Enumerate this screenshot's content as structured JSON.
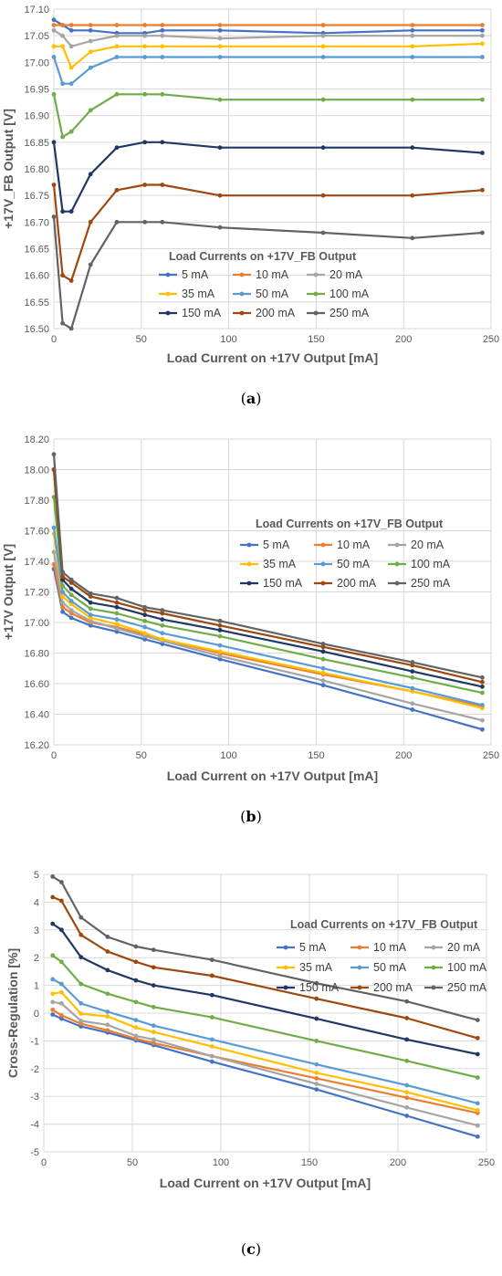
{
  "colors": {
    "5 mA": "#4472C4",
    "10 mA": "#ED7D31",
    "20 mA": "#A5A5A5",
    "35 mA": "#FFC000",
    "50 mA": "#5B9BD5",
    "100 mA": "#70AD47",
    "150 mA": "#1F3864",
    "200 mA": "#9E480E",
    "250 mA": "#636363"
  },
  "chart_data": [
    {
      "id": "a",
      "caption": "a",
      "type": "line",
      "xlabel": "Load Current on +17V Output [mA]",
      "ylabel": "+17V_FB Output [V]",
      "xlim": [
        0,
        250
      ],
      "ylim": [
        16.5,
        17.1
      ],
      "xticks": [
        "0",
        "50",
        "100",
        "150",
        "200",
        "250"
      ],
      "yticks": [
        "16.50",
        "16.55",
        "16.60",
        "16.65",
        "16.70",
        "16.75",
        "16.80",
        "16.85",
        "16.90",
        "16.95",
        "17.00",
        "17.05",
        "17.10"
      ],
      "legend_title": "Load Currents on +17V_FB Output",
      "grid": true,
      "x": [
        0,
        5,
        10,
        21,
        36,
        52,
        62,
        95,
        154,
        205,
        245
      ],
      "series": [
        {
          "name": "5 mA",
          "values": [
            17.08,
            17.07,
            17.06,
            17.06,
            17.055,
            17.055,
            17.06,
            17.06,
            17.055,
            17.06,
            17.06
          ]
        },
        {
          "name": "10 mA",
          "values": [
            17.07,
            17.07,
            17.07,
            17.07,
            17.07,
            17.07,
            17.07,
            17.07,
            17.07,
            17.07,
            17.07
          ]
        },
        {
          "name": "20 mA",
          "values": [
            17.06,
            17.05,
            17.03,
            17.04,
            17.05,
            17.05,
            17.05,
            17.045,
            17.05,
            17.05,
            17.05
          ]
        },
        {
          "name": "35 mA",
          "values": [
            17.03,
            17.03,
            16.99,
            17.02,
            17.03,
            17.03,
            17.03,
            17.03,
            17.03,
            17.03,
            17.035
          ]
        },
        {
          "name": "50 mA",
          "values": [
            17.01,
            16.96,
            16.96,
            16.99,
            17.01,
            17.01,
            17.01,
            17.01,
            17.01,
            17.01,
            17.01
          ]
        },
        {
          "name": "100 mA",
          "values": [
            16.94,
            16.86,
            16.87,
            16.91,
            16.94,
            16.94,
            16.94,
            16.93,
            16.93,
            16.93,
            16.93
          ]
        },
        {
          "name": "150 mA",
          "values": [
            16.85,
            16.72,
            16.72,
            16.79,
            16.84,
            16.85,
            16.85,
            16.84,
            16.84,
            16.84,
            16.83
          ]
        },
        {
          "name": "200 mA",
          "values": [
            16.77,
            16.6,
            16.59,
            16.7,
            16.76,
            16.77,
            16.77,
            16.75,
            16.75,
            16.75,
            16.76
          ]
        },
        {
          "name": "250 mA",
          "values": [
            16.71,
            16.51,
            16.5,
            16.62,
            16.7,
            16.7,
            16.7,
            16.69,
            16.68,
            16.67,
            16.68
          ]
        }
      ]
    },
    {
      "id": "b",
      "caption": "b",
      "type": "line",
      "xlabel": "Load Current on +17V Output [mA]",
      "ylabel": "+17V Output [V]",
      "xlim": [
        0,
        250
      ],
      "ylim": [
        16.2,
        18.2
      ],
      "xticks": [
        "0",
        "50",
        "100",
        "150",
        "200",
        "250"
      ],
      "yticks": [
        "16.20",
        "16.40",
        "16.60",
        "16.80",
        "17.00",
        "17.20",
        "17.40",
        "17.60",
        "17.80",
        "18.00",
        "18.20"
      ],
      "legend_title": "Load Currents on +17V_FB Output",
      "grid": true,
      "x": [
        0,
        5,
        10,
        21,
        36,
        52,
        62,
        95,
        154,
        205,
        245
      ],
      "series": [
        {
          "name": "5 mA",
          "values": [
            17.35,
            17.07,
            17.03,
            16.98,
            16.94,
            16.89,
            16.86,
            16.76,
            16.59,
            16.43,
            16.3
          ]
        },
        {
          "name": "10 mA",
          "values": [
            17.38,
            17.1,
            17.06,
            17.0,
            16.97,
            16.92,
            16.89,
            16.8,
            16.66,
            16.55,
            16.45
          ]
        },
        {
          "name": "20 mA",
          "values": [
            17.46,
            17.13,
            17.08,
            17.01,
            16.96,
            16.91,
            16.88,
            16.78,
            16.62,
            16.47,
            16.36
          ]
        },
        {
          "name": "35 mA",
          "values": [
            17.58,
            17.17,
            17.12,
            17.03,
            16.99,
            16.93,
            16.89,
            16.81,
            16.67,
            16.55,
            16.44
          ]
        },
        {
          "name": "50 mA",
          "values": [
            17.62,
            17.2,
            17.14,
            17.05,
            17.02,
            16.97,
            16.93,
            16.85,
            16.7,
            16.57,
            16.46
          ]
        },
        {
          "name": "100 mA",
          "values": [
            17.82,
            17.24,
            17.18,
            17.09,
            17.06,
            17.01,
            16.98,
            16.91,
            16.76,
            16.64,
            16.54
          ]
        },
        {
          "name": "150 mA",
          "values": [
            18.0,
            17.28,
            17.22,
            17.13,
            17.1,
            17.05,
            17.02,
            16.95,
            16.81,
            16.68,
            16.58
          ]
        },
        {
          "name": "200 mA",
          "values": [
            18.0,
            17.3,
            17.26,
            17.17,
            17.13,
            17.08,
            17.06,
            16.98,
            16.84,
            16.72,
            16.61
          ]
        },
        {
          "name": "250 mA",
          "values": [
            18.1,
            17.33,
            17.28,
            17.19,
            17.16,
            17.1,
            17.08,
            17.01,
            16.86,
            16.74,
            16.64
          ]
        }
      ]
    },
    {
      "id": "c",
      "caption": "c",
      "type": "line",
      "xlabel": "Load Current on +17V Output [mA]",
      "ylabel": "Cross-Regulation [%]",
      "xlim": [
        0,
        250
      ],
      "ylim": [
        -5,
        5
      ],
      "xticks": [
        "0",
        "50",
        "100",
        "150",
        "200",
        "250"
      ],
      "yticks": [
        "-5",
        "-4",
        "-3",
        "-2",
        "-1",
        "0",
        "1",
        "2",
        "3",
        "4",
        "5"
      ],
      "legend_title": "Load Currents on +17V_FB Output",
      "grid": true,
      "x": [
        5,
        10,
        21,
        36,
        52,
        62,
        95,
        154,
        205,
        245
      ],
      "series": [
        {
          "name": "5 mA",
          "values": [
            -0.05,
            -0.2,
            -0.48,
            -0.7,
            -0.98,
            -1.15,
            -1.75,
            -2.75,
            -3.7,
            -4.45
          ]
        },
        {
          "name": "10 mA",
          "values": [
            0.12,
            -0.08,
            -0.38,
            -0.62,
            -0.92,
            -1.08,
            -1.55,
            -2.35,
            -3.05,
            -3.6
          ]
        },
        {
          "name": "20 mA",
          "values": [
            0.4,
            0.35,
            -0.28,
            -0.42,
            -0.82,
            -0.95,
            -1.55,
            -2.55,
            -3.4,
            -4.05
          ]
        },
        {
          "name": "35 mA",
          "values": [
            0.7,
            0.75,
            -0.02,
            -0.12,
            -0.52,
            -0.68,
            -1.2,
            -2.15,
            -2.85,
            -3.5
          ]
        },
        {
          "name": "50 mA",
          "values": [
            1.22,
            1.05,
            0.35,
            0.05,
            -0.25,
            -0.45,
            -0.95,
            -1.85,
            -2.6,
            -3.25
          ]
        },
        {
          "name": "100 mA",
          "values": [
            2.08,
            1.85,
            1.05,
            0.7,
            0.4,
            0.22,
            -0.15,
            -1.0,
            -1.72,
            -2.32
          ]
        },
        {
          "name": "150 mA",
          "values": [
            3.22,
            3.0,
            2.02,
            1.55,
            1.18,
            1.0,
            0.65,
            -0.2,
            -0.95,
            -1.48
          ]
        },
        {
          "name": "200 mA",
          "values": [
            4.18,
            4.05,
            2.82,
            2.22,
            1.85,
            1.65,
            1.35,
            0.52,
            -0.18,
            -0.9
          ]
        },
        {
          "name": "250 mA",
          "values": [
            4.92,
            4.72,
            3.45,
            2.75,
            2.4,
            2.28,
            1.92,
            1.08,
            0.42,
            -0.25
          ]
        }
      ]
    }
  ]
}
